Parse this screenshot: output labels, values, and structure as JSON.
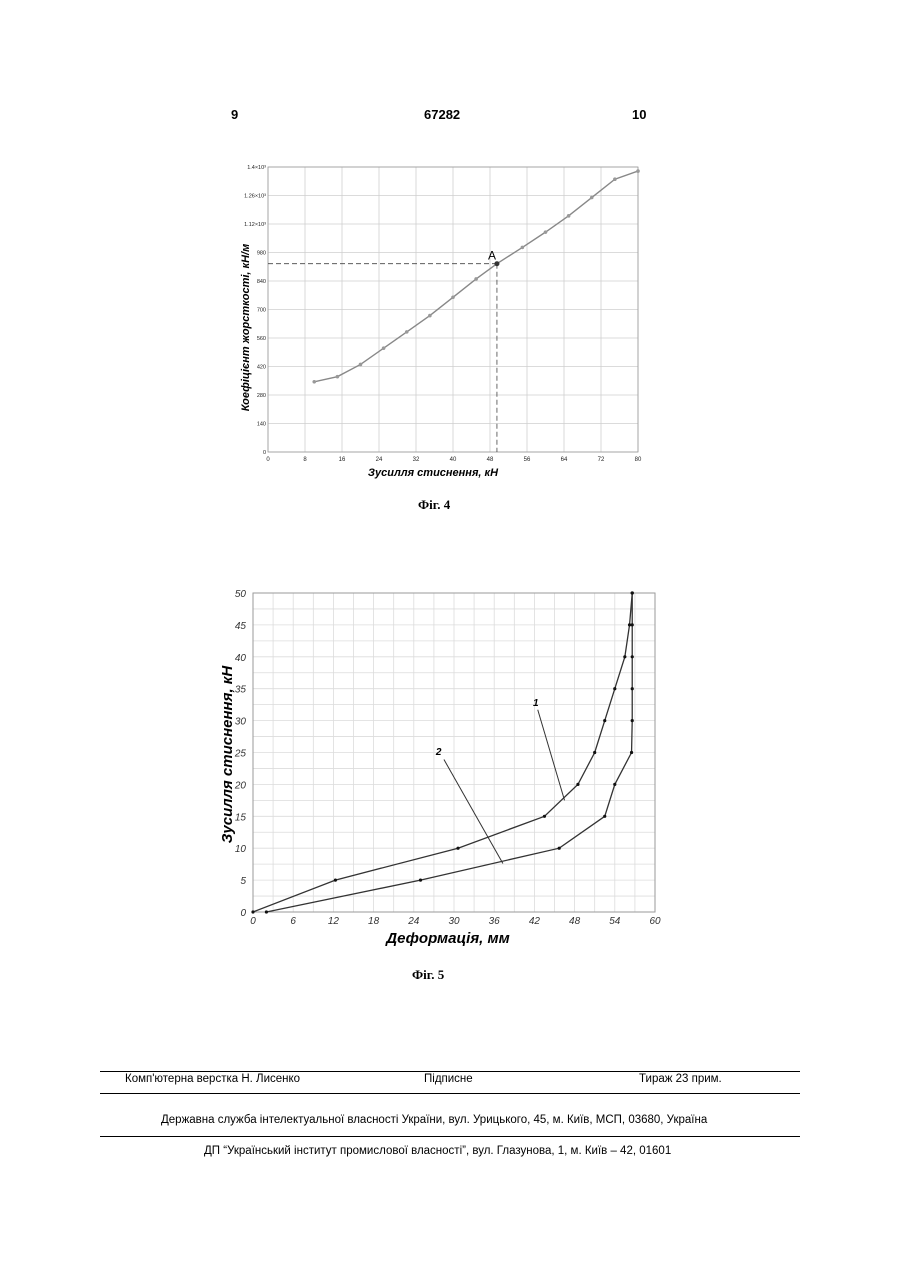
{
  "header": {
    "page_left": "9",
    "patent_number": "67282",
    "page_right": "10"
  },
  "chart_data": [
    {
      "type": "line",
      "title": "",
      "caption": "Фіг. 4",
      "xlabel": "Зусилля стиснення, кН",
      "ylabel": "Коефіцієнт жорсткості, кН/м",
      "xlim": [
        0,
        80
      ],
      "ylim": [
        0,
        1400
      ],
      "x_ticks": [
        "0",
        "8",
        "16",
        "24",
        "32",
        "40",
        "48",
        "56",
        "64",
        "72",
        "80"
      ],
      "y_tick_values": [
        0,
        140,
        280,
        420,
        560,
        700,
        840,
        980,
        1120,
        1260,
        1400
      ],
      "y_tick_labels": [
        "0",
        "140",
        "280",
        "420",
        "560",
        "700",
        "840",
        "980",
        "1.12×10³",
        "1.26×10³",
        "1.4×10³"
      ],
      "grid": true,
      "series": [
        {
          "x": [
            10,
            15,
            20,
            25,
            30,
            35,
            40,
            45,
            49.5,
            55,
            60,
            65,
            70,
            75,
            80
          ],
          "y": [
            345,
            370,
            430,
            510,
            590,
            670,
            760,
            850,
            925,
            1005,
            1080,
            1160,
            1250,
            1340,
            1380
          ]
        }
      ],
      "annotation": {
        "label": "A",
        "x": 49.5,
        "y": 925
      }
    },
    {
      "type": "line",
      "title": "",
      "caption": "Фіг. 5",
      "xlabel": "Деформація, мм",
      "ylabel": "Зусилля стиснення, кН",
      "xlim": [
        0,
        60
      ],
      "ylim": [
        0,
        50
      ],
      "x_ticks": [
        "0",
        "6",
        "12",
        "18",
        "24",
        "30",
        "36",
        "42",
        "48",
        "54",
        "60"
      ],
      "y_ticks": [
        "0",
        "5",
        "10",
        "15",
        "20",
        "25",
        "30",
        "35",
        "40",
        "45",
        "50"
      ],
      "grid": true,
      "series": [
        {
          "name": "1",
          "x": [
            0,
            12.3,
            30.6,
            43.5,
            48.5,
            51.0,
            52.5,
            54.0,
            55.5,
            56.2,
            56.6
          ],
          "y": [
            0,
            5,
            10,
            15,
            20,
            25,
            30,
            35,
            40,
            45,
            50
          ]
        },
        {
          "name": "2",
          "x": [
            2,
            25,
            45.7,
            52.5,
            54.0,
            56.5,
            56.6,
            56.6,
            56.6,
            56.6,
            56.6
          ],
          "y": [
            0,
            5,
            10,
            15,
            20,
            25,
            30,
            35,
            40,
            45,
            50
          ]
        }
      ]
    }
  ],
  "footer": {
    "layout": "Комп'ютерна верстка Н. Лисенко",
    "signed": "Підписне",
    "circulation": "Тираж 23 прим.",
    "line2": "Державна служба інтелектуальної власності України, вул. Урицького, 45, м. Київ, МСП, 03680, Україна",
    "line3": "ДП “Український інститут промислової власності”, вул. Глазунова, 1, м. Київ – 42, 01601"
  }
}
